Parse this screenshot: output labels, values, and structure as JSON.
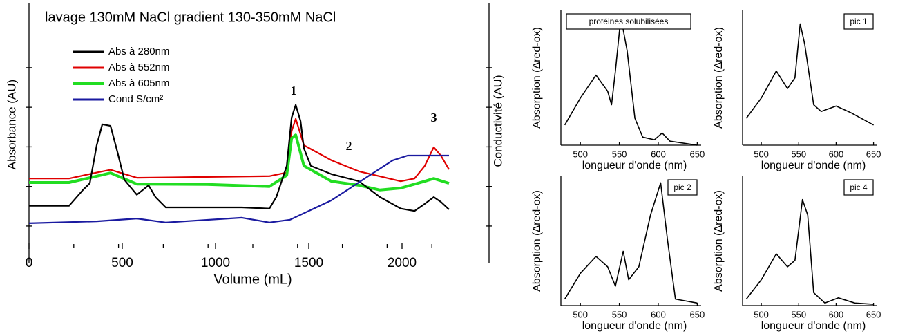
{
  "chart_data": [
    {
      "type": "line",
      "title": "lavage 130mM NaCl gradient 130-350mM NaCl",
      "xlabel": "Volume (mL)",
      "ylabel": "Absorbance (AU)",
      "y2label": "Conductivité (AU)",
      "xlim": [
        0,
        2400
      ],
      "xticks": [
        0,
        500,
        1000,
        1500,
        2000
      ],
      "ylim": [
        0.51,
        6.5
      ],
      "yticks": [
        1,
        2,
        3,
        4,
        5
      ],
      "annotations": [
        "1",
        "2",
        "3"
      ],
      "series": [
        {
          "name": "Abs à 280nm",
          "color": "#000000",
          "x": [
            0,
            215,
            289,
            326,
            363,
            393,
            437,
            474,
            511,
            578,
            641,
            678,
            733,
            956,
            1141,
            1289,
            1326,
            1382,
            1408,
            1430,
            1456,
            1474,
            1511,
            1622,
            1770,
            1882,
            1993,
            2067,
            2122,
            2170,
            2208,
            2252
          ],
          "values": [
            1.51,
            1.51,
            1.91,
            2.08,
            3.04,
            3.57,
            3.53,
            2.87,
            2.17,
            1.79,
            2.03,
            1.73,
            1.47,
            1.47,
            1.47,
            1.44,
            1.73,
            2.52,
            3.74,
            4.06,
            3.65,
            2.96,
            2.52,
            2.31,
            2.13,
            1.73,
            1.44,
            1.38,
            1.56,
            1.73,
            1.61,
            1.42
          ]
        },
        {
          "name": "Abs à 552nm",
          "color": "#e00000",
          "x": [
            0,
            215,
            363,
            437,
            578,
            956,
            1289,
            1382,
            1408,
            1430,
            1474,
            1622,
            1770,
            1993,
            2067,
            2122,
            2170,
            2208,
            2252
          ],
          "values": [
            2.2,
            2.2,
            2.35,
            2.42,
            2.22,
            2.24,
            2.26,
            2.35,
            3.4,
            3.71,
            3.04,
            2.66,
            2.38,
            2.13,
            2.2,
            2.52,
            2.99,
            2.78,
            2.43
          ]
        },
        {
          "name": "Abs à 605nm",
          "color": "#22dd22",
          "x": [
            0,
            215,
            437,
            578,
            956,
            1289,
            1382,
            1408,
            1430,
            1474,
            1622,
            1770,
            1882,
            1993,
            2122,
            2170,
            2252
          ],
          "values": [
            2.1,
            2.1,
            2.34,
            2.06,
            2.05,
            2.0,
            2.28,
            3.22,
            3.3,
            2.52,
            2.13,
            2.03,
            1.91,
            1.96,
            2.13,
            2.2,
            2.08
          ]
        },
        {
          "name": "Cond S/cm²",
          "color": "#1a1aa0",
          "x": [
            0,
            363,
            578,
            733,
            1141,
            1289,
            1400,
            1622,
            1800,
            1950,
            2030,
            2252
          ],
          "values": [
            1.07,
            1.12,
            1.19,
            1.09,
            1.21,
            1.09,
            1.16,
            1.65,
            2.2,
            2.66,
            2.78,
            2.78
          ]
        }
      ]
    },
    {
      "type": "line",
      "title": "protéines solubilisées",
      "xlabel": "longueur d'onde (nm)",
      "ylabel": "Absorption (∆red-ox)",
      "xlim": [
        475,
        655
      ],
      "xticks": [
        500,
        550,
        600,
        650
      ],
      "ylim": [
        0,
        1
      ],
      "series": [
        {
          "color": "#000000",
          "x": [
            480,
            500,
            520,
            535,
            540,
            545,
            552,
            560,
            570,
            580,
            595,
            605,
            615,
            650
          ],
          "values": [
            0.15,
            0.35,
            0.52,
            0.4,
            0.3,
            0.55,
            0.95,
            0.7,
            0.2,
            0.06,
            0.04,
            0.09,
            0.03,
            0.0
          ]
        }
      ]
    },
    {
      "type": "line",
      "title": "pic 1",
      "xlabel": "longueur d'onde (nm)",
      "ylabel": "Absorption (∆red-ox)",
      "xlim": [
        475,
        655
      ],
      "xticks": [
        500,
        550,
        600,
        650
      ],
      "ylim": [
        0,
        1
      ],
      "series": [
        {
          "color": "#000000",
          "x": [
            480,
            500,
            520,
            535,
            545,
            552,
            558,
            570,
            580,
            600,
            620,
            650
          ],
          "values": [
            0.2,
            0.35,
            0.55,
            0.42,
            0.5,
            0.9,
            0.75,
            0.3,
            0.25,
            0.29,
            0.24,
            0.15
          ]
        }
      ]
    },
    {
      "type": "line",
      "title": "pic 2",
      "xlabel": "longueur d'onde (nm)",
      "ylabel": "Absorption (∆red-ox)",
      "xlim": [
        475,
        655
      ],
      "xticks": [
        500,
        550,
        600,
        650
      ],
      "ylim": [
        0,
        1
      ],
      "series": [
        {
          "color": "#000000",
          "x": [
            480,
            500,
            520,
            535,
            545,
            555,
            562,
            575,
            590,
            603,
            612,
            622,
            650
          ],
          "values": [
            0.05,
            0.25,
            0.38,
            0.3,
            0.15,
            0.42,
            0.2,
            0.3,
            0.7,
            0.95,
            0.5,
            0.05,
            0.02
          ]
        }
      ]
    },
    {
      "type": "line",
      "title": "pic 4",
      "xlabel": "longueur d'onde (nm)",
      "ylabel": "Absorption (∆red-ox)",
      "xlim": [
        475,
        655
      ],
      "xticks": [
        500,
        550,
        600,
        650
      ],
      "ylim": [
        0,
        1
      ],
      "series": [
        {
          "color": "#000000",
          "x": [
            480,
            500,
            520,
            535,
            545,
            555,
            562,
            570,
            585,
            603,
            625,
            650
          ],
          "values": [
            0.05,
            0.2,
            0.4,
            0.3,
            0.35,
            0.82,
            0.7,
            0.1,
            0.02,
            0.06,
            0.02,
            0.01
          ]
        }
      ]
    }
  ]
}
